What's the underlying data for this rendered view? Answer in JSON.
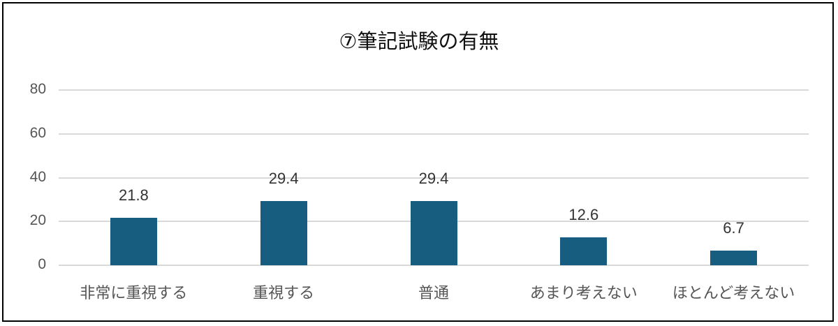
{
  "chart_data": {
    "type": "bar",
    "title": "⑦筆記試験の有無",
    "categories": [
      "非常に重視する",
      "重視する",
      "普通",
      "あまり考えない",
      "ほとんど考えない"
    ],
    "values": [
      21.8,
      29.4,
      29.4,
      12.6,
      6.7
    ],
    "value_labels": [
      "21.8",
      "29.4",
      "29.4",
      "12.6",
      "6.7"
    ],
    "xlabel": "",
    "ylabel": "",
    "ylim": [
      0,
      80
    ],
    "yticks": [
      "0",
      "20",
      "40",
      "60",
      "80"
    ],
    "grid": true,
    "legend": "none",
    "bar_color": "#175d80"
  }
}
